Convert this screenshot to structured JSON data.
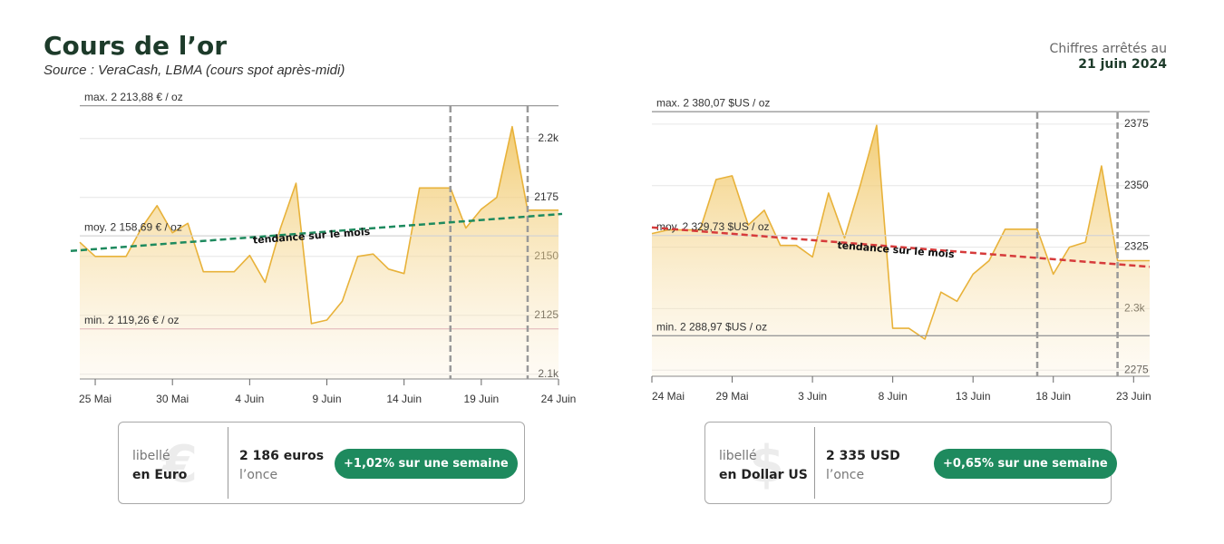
{
  "header": {
    "title": "Cours de l’or",
    "source": "Source : VeraCash, LBMA (cours spot après-midi)",
    "note_label": "Chiffres arrêtés au",
    "note_date": "21 juin 2024"
  },
  "chart_data": [
    {
      "type": "area",
      "color": "#e8b23a",
      "categories": [
        null,
        "25 Mai",
        null,
        null,
        null,
        null,
        "30 Mai",
        null,
        null,
        null,
        null,
        "4 Juin",
        null,
        null,
        null,
        null,
        "9 Juin",
        null,
        null,
        null,
        null,
        "14 Juin",
        null,
        null,
        null,
        null,
        "19 Juin",
        null,
        null,
        null,
        null,
        "24 Juin"
      ],
      "values": [
        2156,
        2150,
        2150,
        2150,
        2162,
        2171.5,
        2160,
        2164,
        2143.5,
        2143.5,
        2143.5,
        2150.4,
        2139,
        2162,
        2181,
        2121.5,
        2123,
        2131,
        2150,
        2151,
        2144.6,
        2142.7,
        2179,
        2179,
        2179,
        2162,
        2170,
        2175,
        2205,
        2169.6,
        2169.6,
        2169.6
      ],
      "ylim": [
        2098,
        2214.5
      ],
      "yticks": [
        {
          "value": 2100,
          "label": "2.1k"
        },
        2125,
        2150,
        2175,
        {
          "value": 2200,
          "label": "2.2k"
        }
      ],
      "grid": true,
      "reference_lines": [
        {
          "label": "max. 2 213,88 € / oz",
          "value": 2213.88,
          "color": "#9a9a9a"
        },
        {
          "label": "moy. 2 158,69 € / oz",
          "value": 2158.69,
          "color": "#d4d4d4"
        },
        {
          "label": "min. 2 119,26 € / oz",
          "value": 2119.26,
          "color": "#e8c4c4"
        }
      ],
      "trend": {
        "label": "tendance sur le mois",
        "values": [
          2152.3,
          2168
        ],
        "color": "#1e8a5e"
      },
      "vlines": [
        24,
        29
      ]
    },
    {
      "type": "area",
      "color": "#e8b23a",
      "categories": [
        "24 Mai",
        null,
        null,
        null,
        null,
        "29 Mai",
        null,
        null,
        null,
        null,
        "3 Juin",
        null,
        null,
        null,
        null,
        "8 Juin",
        null,
        null,
        null,
        null,
        "13 Juin",
        null,
        null,
        null,
        null,
        "18 Juin",
        null,
        null,
        null,
        null,
        "23 Juin",
        null
      ],
      "values": [
        2330.5,
        2332,
        2332,
        2332,
        2352.5,
        2354,
        2334,
        2340,
        2325.7,
        2325.7,
        2321,
        2347,
        2328.7,
        2350.6,
        2374.5,
        2292,
        2292,
        2287.6,
        2306.7,
        2303,
        2314,
        2319.5,
        2332.3,
        2332.3,
        2332.3,
        2314,
        2325,
        2327,
        2358,
        2319.5,
        2319.5,
        2319.5
      ],
      "ylim": [
        2272.5,
        2380.5
      ],
      "yticks": [
        2275,
        {
          "value": 2300,
          "label": "2.3k"
        },
        2325,
        2350,
        2375
      ],
      "grid": true,
      "reference_lines": [
        {
          "label": "max. 2 380,07 $US / oz",
          "value": 2380.07,
          "color": "#9a9a9a"
        },
        {
          "label": "moy. 2 329,73 $US / oz",
          "value": 2329.73,
          "color": "#d4d4d4"
        },
        {
          "label": "min. 2 288,97 $US / oz",
          "value": 2288.97,
          "color": "#9a9a9a"
        }
      ],
      "trend": {
        "label": "tendance sur le mois",
        "values": [
          2333,
          2317
        ],
        "color": "#d63b3b"
      },
      "vlines": [
        24,
        29
      ]
    }
  ],
  "cards": [
    {
      "label": "libellé",
      "currency": "en Euro",
      "icon": "€",
      "price": "2 186 euros",
      "unit": "l’once",
      "change": "+1,02% sur une semaine"
    },
    {
      "label": "libellé",
      "currency": "en Dollar US",
      "icon": "$",
      "price": "2 335 USD",
      "unit": "l’once",
      "change": "+0,65% sur une semaine"
    }
  ]
}
